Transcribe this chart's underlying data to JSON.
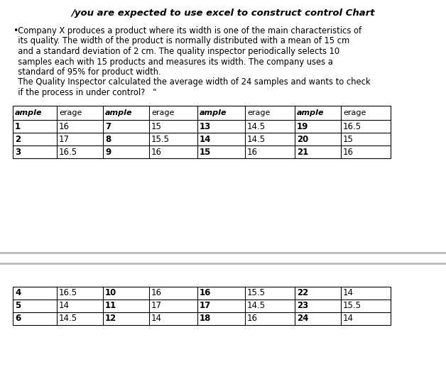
{
  "title": "/you are expected to use excel to construct control Chart",
  "body_lines": [
    "  Company X produces a product where its width is one of the main characteristics of",
    "  its quality. The width of the product is normally distributed with a mean of 15 cm",
    "  and a standard deviation of 2 cm. The quality inspector periodically selects 10",
    "  samples each with 15 products and measures its width. The company uses a",
    "  standard of 95% for product width.",
    "  The Quality Inspector calculated the average width of 24 samples and wants to check",
    "  if the process in under control?   \""
  ],
  "table1_headers": [
    "ample",
    "erage",
    "ample",
    "erage",
    "ample",
    "erage",
    "ample",
    "erage"
  ],
  "table1_rows": [
    [
      "1",
      "16",
      "7",
      "15",
      "13",
      "14.5",
      "19",
      "16.5"
    ],
    [
      "2",
      "17",
      "8",
      "15.5",
      "14",
      "14.5",
      "20",
      "15"
    ],
    [
      "3",
      "16.5",
      "9",
      "16",
      "15",
      "16",
      "21",
      "16"
    ]
  ],
  "table2_rows": [
    [
      "4",
      "16.5",
      "10",
      "16",
      "16",
      "15.5",
      "22",
      "14"
    ],
    [
      "5",
      "14",
      "11",
      "17",
      "17",
      "14.5",
      "23",
      "15.5"
    ],
    [
      "6",
      "14.5",
      "12",
      "14",
      "18",
      "16",
      "24",
      "14"
    ]
  ],
  "col_starts": [
    18,
    80,
    145,
    210,
    278,
    345,
    415,
    480
  ],
  "col_ends": [
    80,
    145,
    210,
    278,
    345,
    415,
    480,
    550
  ],
  "bg_color": "#ffffff",
  "text_color": "#000000",
  "divider_color": "#bbbbbb"
}
